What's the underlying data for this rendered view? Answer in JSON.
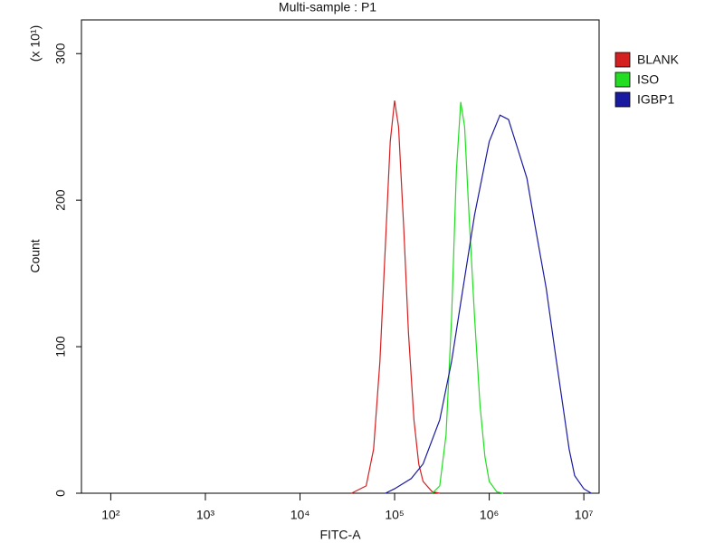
{
  "chart_data": {
    "type": "line",
    "title": "Multi-sample : P1",
    "x_label": "FITC-A",
    "y_label": "Count",
    "y_multiplier": "(x 10¹)",
    "x_scale": "log",
    "xlim": [
      49,
      14500000
    ],
    "ylim": [
      0,
      323
    ],
    "xticks": [
      {
        "value": 100,
        "label": "10²"
      },
      {
        "value": 1000,
        "label": "10³"
      },
      {
        "value": 10000,
        "label": "10⁴"
      },
      {
        "value": 100000,
        "label": "10⁵"
      },
      {
        "value": 1000000,
        "label": "10⁶"
      },
      {
        "value": 10000000,
        "label": "10⁷"
      }
    ],
    "yticks": [
      0,
      100,
      200,
      300
    ],
    "legend_position": "right",
    "series": [
      {
        "name": "BLANK",
        "color": "#d42020",
        "x": [
          35000,
          50000,
          60000,
          70000,
          80000,
          90000,
          100000,
          110000,
          125000,
          140000,
          160000,
          180000,
          200000,
          250000,
          300000
        ],
        "values": [
          0,
          5,
          30,
          90,
          170,
          240,
          268,
          250,
          180,
          110,
          50,
          20,
          8,
          1,
          0
        ]
      },
      {
        "name": "ISO",
        "color": "#22dd22",
        "x": [
          250000,
          300000,
          350000,
          400000,
          450000,
          500000,
          550000,
          600000,
          700000,
          800000,
          900000,
          1000000,
          1200000,
          1400000
        ],
        "values": [
          0,
          5,
          40,
          120,
          220,
          267,
          250,
          200,
          120,
          60,
          25,
          8,
          1,
          0
        ]
      },
      {
        "name": "IGBP1",
        "color": "#1a1aa0",
        "x": [
          80000,
          100000,
          150000,
          200000,
          300000,
          400000,
          500000,
          700000,
          1000000,
          1300000,
          1600000,
          2000000,
          2500000,
          3000000,
          4000000,
          5000000,
          6000000,
          7000000,
          8000000,
          10000000,
          12000000
        ],
        "values": [
          0,
          3,
          10,
          20,
          50,
          90,
          130,
          190,
          240,
          258,
          255,
          235,
          215,
          185,
          140,
          95,
          60,
          30,
          12,
          3,
          0
        ]
      }
    ]
  }
}
